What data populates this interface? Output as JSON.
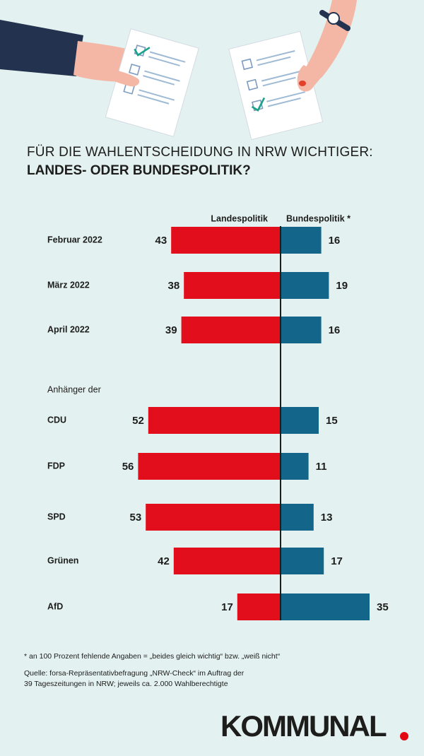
{
  "title_line1": "FÜR DIE WAHLENTSCHEIDUNG IN NRW WICHTIGER:",
  "title_line2": "LANDES- ODER BUNDESPOLITIK?",
  "chart_data": {
    "type": "bar",
    "orientation": "horizontal-diverging",
    "series": [
      {
        "name": "Landespolitik",
        "color": "#e30e1b"
      },
      {
        "name": "Bundespolitik *",
        "color": "#13668a"
      }
    ],
    "group_label": "Anhänger der",
    "rows": [
      {
        "label": "Februar 2022",
        "landes": 43,
        "bundes": 16
      },
      {
        "label": "März 2022",
        "landes": 38,
        "bundes": 19
      },
      {
        "label": "April 2022",
        "landes": 39,
        "bundes": 16
      },
      {
        "label": "CDU",
        "landes": 52,
        "bundes": 15
      },
      {
        "label": "FDP",
        "landes": 56,
        "bundes": 11
      },
      {
        "label": "SPD",
        "landes": 53,
        "bundes": 13
      },
      {
        "label": "Grünen",
        "landes": 42,
        "bundes": 17
      },
      {
        "label": "AfD",
        "landes": 17,
        "bundes": 35
      }
    ]
  },
  "footnote_text": "an 100 Prozent fehlende Angaben = „beides gleich wichtig“ bzw. „weiß nicht“",
  "source_line1": "Quelle: forsa-Repräsentativbefragung „NRW-Check“ im Auftrag der",
  "source_line2": "39 Tageszeitungen in NRW; jeweils ca. 2.000 Wahlberechtigte",
  "logo_text": "KOMMUNAL"
}
